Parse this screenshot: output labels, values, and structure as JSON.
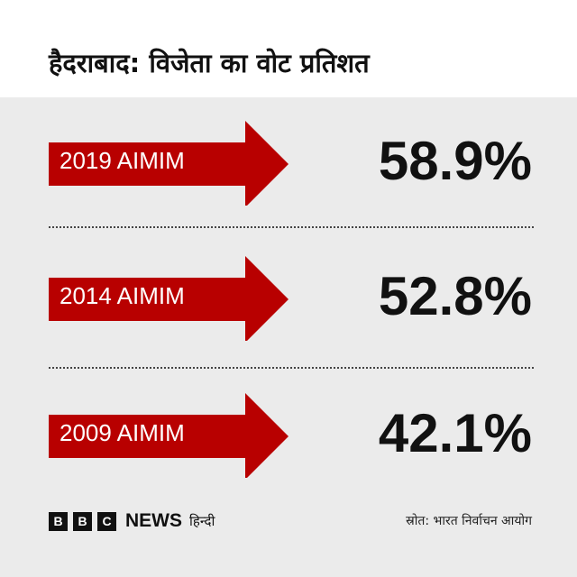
{
  "title": "हैदराबाद: विजेता का वोट प्रतिशत",
  "rows": [
    {
      "label": "2019 AIMIM",
      "value": "58.9%"
    },
    {
      "label": "2014 AIMIM",
      "value": "52.8%"
    },
    {
      "label": "2009 AIMIM",
      "value": "42.1%"
    }
  ],
  "colors": {
    "arrow": "#b80000",
    "background": "#ebebeb"
  },
  "footer": {
    "logo_letters": [
      "B",
      "B",
      "C"
    ],
    "logo_news": "NEWS",
    "logo_hindi": "हिन्दी",
    "source": "स्रोत: भारत निर्वाचन आयोग"
  }
}
